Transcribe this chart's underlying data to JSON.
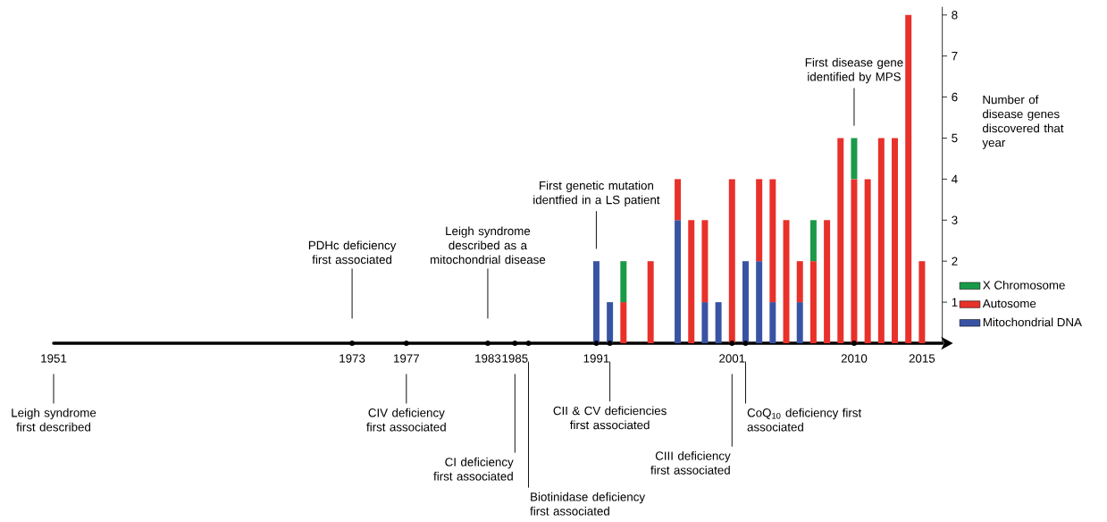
{
  "chart_data": {
    "type": "bar",
    "stacked": true,
    "ylabel": "Number of disease genes discovered that year",
    "x": [
      1991,
      1992,
      1993,
      1995,
      1997,
      1998,
      1999,
      2000,
      2001,
      2002,
      2003,
      2004,
      2005,
      2006,
      2007,
      2008,
      2009,
      2010,
      2011,
      2012,
      2013,
      2014,
      2015
    ],
    "series": [
      {
        "name": "Mitochondrial DNA",
        "color": "#3953a4",
        "values": [
          2,
          1,
          0,
          0,
          3,
          0,
          1,
          1,
          0,
          2,
          2,
          1,
          0,
          1,
          0,
          0,
          0,
          0,
          0,
          0,
          0,
          0,
          0
        ]
      },
      {
        "name": "Autosome",
        "color": "#e8312a",
        "values": [
          0,
          0,
          1,
          2,
          1,
          3,
          2,
          0,
          4,
          0,
          2,
          3,
          3,
          1,
          2,
          3,
          5,
          4,
          4,
          5,
          5,
          8,
          2
        ]
      },
      {
        "name": "X Chromosome",
        "color": "#1a9a48",
        "values": [
          0,
          0,
          1,
          0,
          0,
          0,
          0,
          0,
          0,
          0,
          0,
          0,
          0,
          0,
          1,
          0,
          0,
          1,
          0,
          0,
          0,
          0,
          0
        ]
      }
    ],
    "xlim": [
      1951,
      2016.5
    ],
    "xticks": [
      1951,
      1973,
      1977,
      1983,
      1985,
      1991,
      2001,
      2010,
      2015
    ],
    "ylim": [
      0,
      8.2
    ],
    "yticks": [
      1,
      2,
      3,
      4,
      5,
      6,
      7,
      8
    ],
    "legend": "bottom right",
    "ref_lines": [
      {
        "axis": "x",
        "value": 1951,
        "label": "Leigh syndrome first described"
      },
      {
        "axis": "x",
        "value": 1973,
        "label": "PDHc deficiency first associated"
      },
      {
        "axis": "x",
        "value": 1977,
        "label": "CIV deficiency first associated"
      },
      {
        "axis": "x",
        "value": 1983,
        "label": "Leigh syndrome described as a mitochondrial disease"
      },
      {
        "axis": "x",
        "value": 1985,
        "label": "CI deficiency first associated"
      },
      {
        "axis": "x",
        "value": 1986,
        "label": "Biotinidase deficiency first associated"
      },
      {
        "axis": "x",
        "value": 1991,
        "label": "First genetic mutation identfied in a LS patient"
      },
      {
        "axis": "x",
        "value": 1992,
        "label": "CII & CV deficiencies first associated"
      },
      {
        "axis": "x",
        "value": 2001,
        "label": "CIII deficiency first associated"
      },
      {
        "axis": "x",
        "value": 2002,
        "label": "CoQ$_{10}$ deficiency first associated"
      },
      {
        "axis": "x",
        "value": 2010,
        "label": "First disease gene identified by MPS"
      }
    ]
  }
}
